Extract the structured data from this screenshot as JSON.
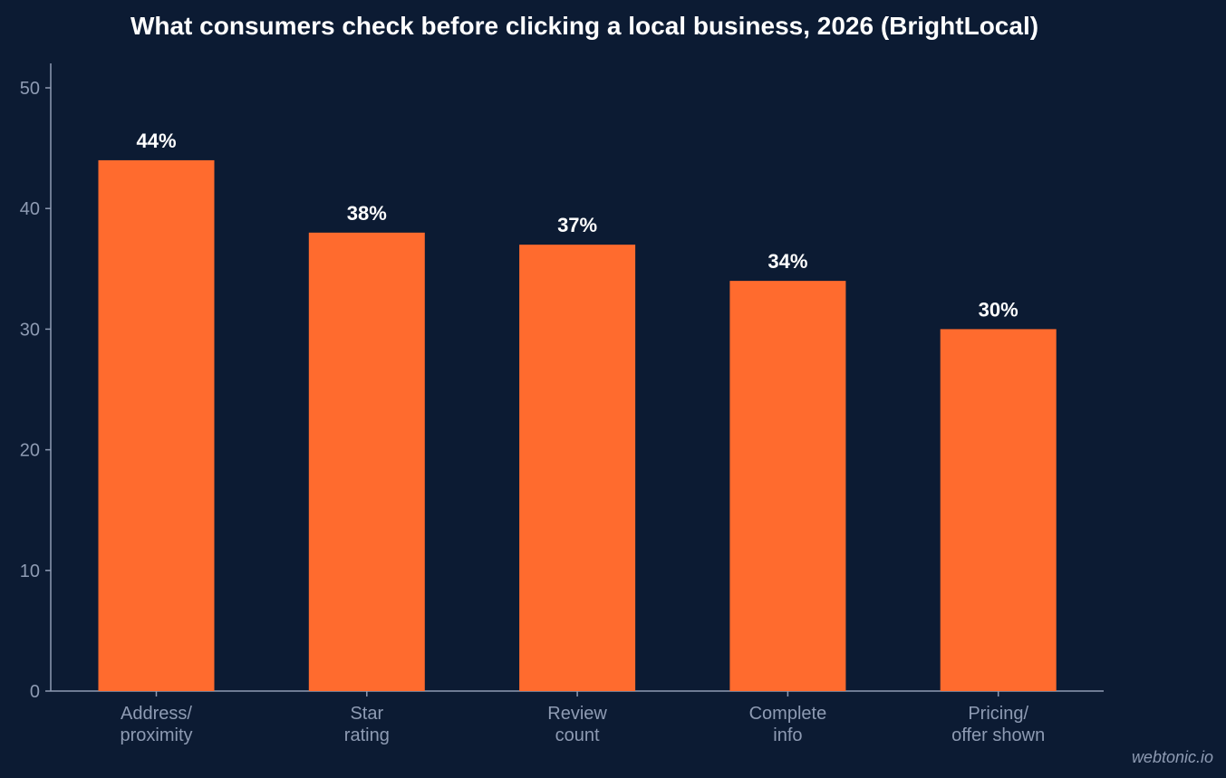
{
  "chart_data": {
    "type": "bar",
    "title": "What consumers check before clicking a local business, 2026 (BrightLocal)",
    "categories": [
      [
        "Address/",
        "proximity"
      ],
      [
        "Star",
        "rating"
      ],
      [
        "Review",
        "count"
      ],
      [
        "Complete",
        "info"
      ],
      [
        "Pricing/",
        "offer shown"
      ]
    ],
    "values": [
      44,
      38,
      37,
      34,
      30
    ],
    "data_labels": [
      "44%",
      "38%",
      "37%",
      "34%",
      "30%"
    ],
    "y_ticks": [
      0,
      10,
      20,
      30,
      40,
      50
    ],
    "ylim": [
      0,
      52
    ],
    "xlabel": "",
    "ylabel": "",
    "grid": false,
    "legend": false,
    "colors": {
      "background": "#0c1b33",
      "bar": "#ff6b2e",
      "axis": "#8e9bb3",
      "tick_text": "#8e9bb3",
      "label_text": "#ffffff"
    }
  },
  "watermark": "webtonic.io"
}
